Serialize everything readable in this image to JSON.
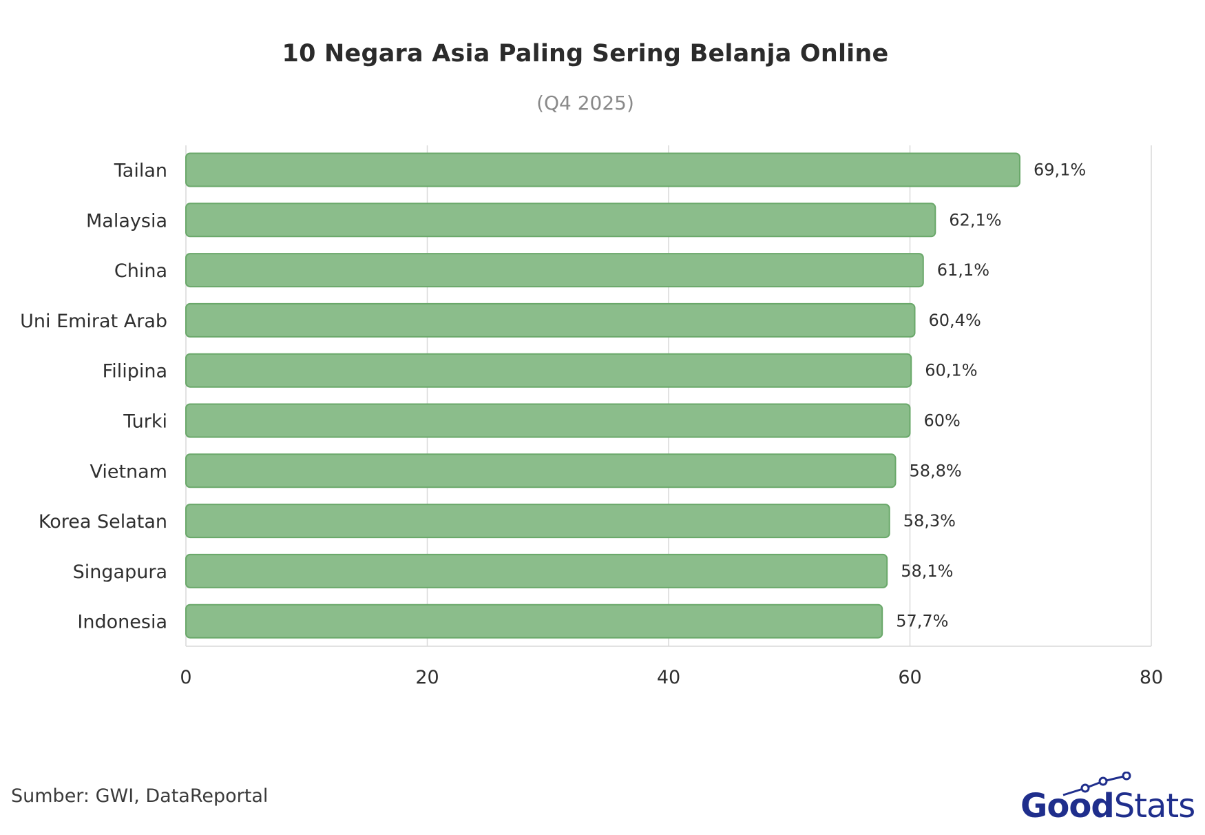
{
  "chart_data": {
    "type": "bar",
    "orientation": "horizontal",
    "title": "10 Negara Asia Paling Sering Belanja Online",
    "subtitle": "(Q4 2025)",
    "categories": [
      "Tailan",
      "Malaysia",
      "China",
      "Uni Emirat Arab",
      "Filipina",
      "Turki",
      "Vietnam",
      "Korea Selatan",
      "Singapura",
      "Indonesia"
    ],
    "values": [
      69.1,
      62.1,
      61.1,
      60.4,
      60.1,
      60,
      58.8,
      58.3,
      58.1,
      57.7
    ],
    "value_labels": [
      "69,1%",
      "62,1%",
      "61,1%",
      "60,4%",
      "60,1%",
      "60%",
      "58,8%",
      "58,3%",
      "58,1%",
      "57,7%"
    ],
    "xlim": [
      0,
      80
    ],
    "xticks": [
      0,
      20,
      40,
      60,
      80
    ],
    "xtick_labels": [
      "0",
      "20",
      "40",
      "60",
      "80"
    ],
    "xlabel": "",
    "ylabel": "",
    "grid": true,
    "bar_color": "#8bbd8b",
    "bar_edge_color": "#6aa86a"
  },
  "source": "Sumber: GWI, DataReportal",
  "logo": {
    "text_bold": "Good",
    "text_regular": "Stats",
    "color": "#1f2e8c"
  }
}
